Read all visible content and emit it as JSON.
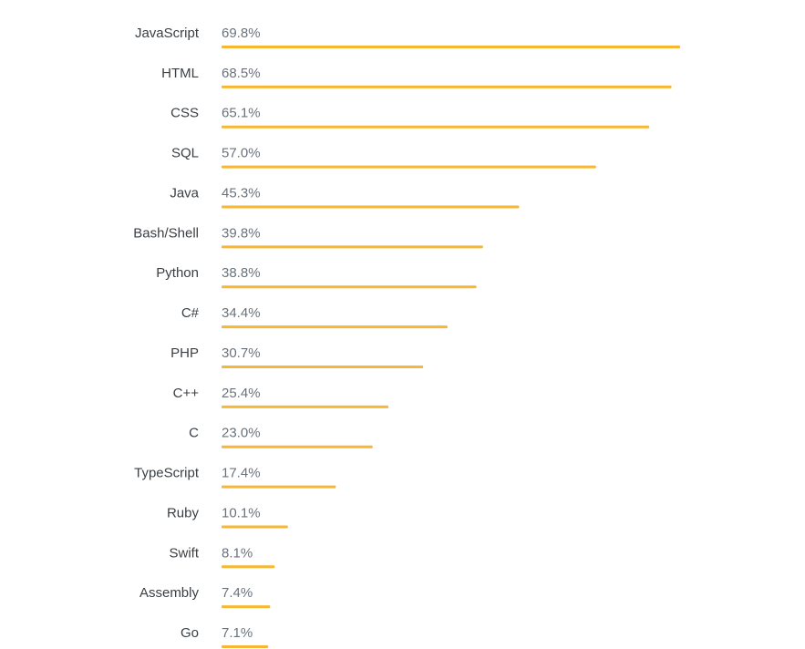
{
  "chart_data": {
    "type": "bar",
    "orientation": "horizontal",
    "categories": [
      "JavaScript",
      "HTML",
      "CSS",
      "SQL",
      "Java",
      "Bash/Shell",
      "Python",
      "C#",
      "PHP",
      "C++",
      "C",
      "TypeScript",
      "Ruby",
      "Swift",
      "Assembly",
      "Go"
    ],
    "values": [
      69.8,
      68.5,
      65.1,
      57.0,
      45.3,
      39.8,
      38.8,
      34.4,
      30.7,
      25.4,
      23.0,
      17.4,
      10.1,
      8.1,
      7.4,
      7.1
    ],
    "value_labels": [
      "69.8%",
      "68.5%",
      "65.1%",
      "57.0%",
      "45.3%",
      "39.8%",
      "38.8%",
      "34.4%",
      "30.7%",
      "25.4%",
      "23.0%",
      "17.4%",
      "10.1%",
      "8.1%",
      "7.4%",
      "7.1%"
    ],
    "title": "",
    "xlabel": "",
    "ylabel": "",
    "xlim": [
      0,
      69.8
    ],
    "grid": false,
    "legend": "none",
    "bar_color": "#f7b733",
    "category_label_color": "#3b4045",
    "value_label_color": "#6a737c"
  }
}
